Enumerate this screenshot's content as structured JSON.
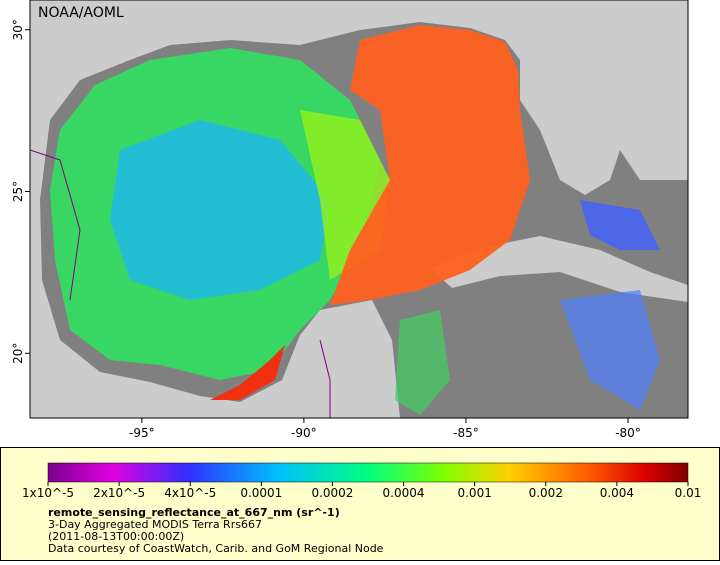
{
  "map": {
    "credit": "NOAA/AOML",
    "xlim": [
      -98.45,
      -78.15
    ],
    "ylim": [
      18.0,
      30.92
    ],
    "xticks": [
      {
        "value": -95,
        "label": "-95°"
      },
      {
        "value": -90,
        "label": "-90°"
      },
      {
        "value": -85,
        "label": "-85°"
      },
      {
        "value": -80,
        "label": "-80°"
      }
    ],
    "yticks": [
      {
        "value": 30,
        "label": "30°"
      },
      {
        "value": 25,
        "label": "25°"
      },
      {
        "value": 20,
        "label": "20°"
      }
    ],
    "colorbar_ticks": [
      {
        "value": 1e-05,
        "label": "1x10^-5"
      },
      {
        "value": 2e-05,
        "label": "2x10^-5"
      },
      {
        "value": 4e-05,
        "label": "4x10^-5"
      },
      0.0001,
      0.0002,
      0.0004,
      0.001,
      0.002,
      0.004,
      0.01
    ],
    "variable": "remote_sensing_reflectance_at_667_nm (sr^-1)",
    "dataset": "3-Day Aggregated MODIS Terra Rrs667",
    "time": "(2011-08-13T00:00:00Z)",
    "source": "Data courtesy of CoastWatch, Carib. and GoM Regional Node"
  }
}
